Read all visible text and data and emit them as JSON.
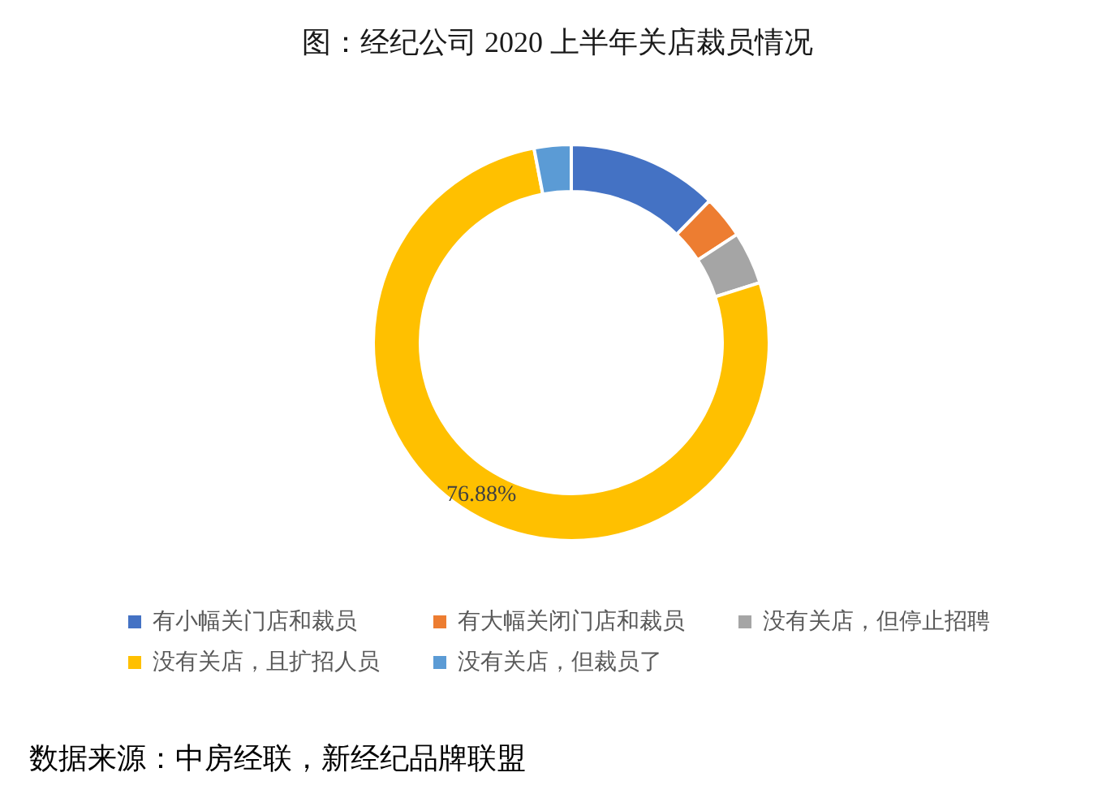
{
  "chart_data": {
    "type": "donut",
    "title": "图：经纪公司 2020 上半年关店裁员情况",
    "categories": [
      "有小幅关门店和裁员",
      "有大幅关闭门店和裁员",
      "没有关店，但停止招聘",
      "没有关店，且扩招人员",
      "没有关店，但裁员了"
    ],
    "values": [
      12.3,
      3.5,
      4.3,
      76.88,
      3.02
    ],
    "colors": [
      "#4472c4",
      "#ed7d31",
      "#a5a5a5",
      "#ffc000",
      "#5b9bd5"
    ],
    "value_labels": [
      null,
      null,
      null,
      "76.88%",
      null
    ],
    "legend": "bottom",
    "annotations": [
      "数据来源：中房经联，新经纪品牌联盟"
    ]
  }
}
